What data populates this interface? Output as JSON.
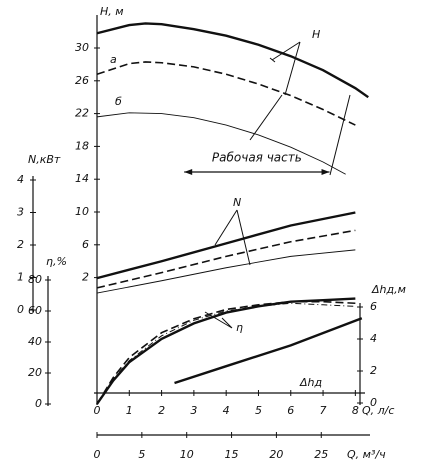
{
  "chart_data": {
    "type": "line",
    "xlabel": "Q, л/с",
    "xlim": [
      0,
      8.5
    ],
    "xticks": [
      0,
      1,
      2,
      3,
      4,
      5,
      6,
      7,
      8
    ],
    "x2label": "Q, м³/ч",
    "x2lim": [
      0,
      30.6
    ],
    "x2ticks": [
      0,
      5,
      10,
      15,
      20,
      25
    ],
    "axes": {
      "h": {
        "label": "H, м",
        "lim": [
          0,
          34
        ],
        "ticks": [
          30,
          26,
          22,
          18,
          14,
          10,
          6,
          2
        ]
      },
      "n": {
        "label": "N,кВт",
        "lim": [
          0,
          4
        ],
        "ticks": [
          4,
          3,
          2,
          1,
          0
        ]
      },
      "eta": {
        "label": "η,%",
        "lim": [
          0,
          80
        ],
        "ticks": [
          80,
          60,
          40,
          20,
          0
        ]
      },
      "dh": {
        "label": "Δhд,м",
        "lim": [
          0,
          6
        ],
        "ticks": [
          6,
          4,
          2,
          0
        ]
      }
    },
    "series": [
      {
        "axis": "h",
        "style": "thick",
        "x": [
          0,
          1,
          1.5,
          2,
          3,
          4,
          5,
          6,
          7,
          8,
          8.4
        ],
        "values": [
          31.8,
          32.8,
          33,
          32.9,
          32.3,
          31.5,
          30.4,
          29,
          27.3,
          25.1,
          24
        ]
      },
      {
        "axis": "h",
        "style": "dashed",
        "x": [
          0,
          1,
          1.5,
          2,
          3,
          4,
          5,
          6,
          7,
          8
        ],
        "values": [
          26.8,
          28.1,
          28.3,
          28.2,
          27.7,
          26.8,
          25.6,
          24.2,
          22.5,
          20.6
        ]
      },
      {
        "axis": "h",
        "style": "thin",
        "x": [
          0,
          1,
          2,
          3,
          4,
          5,
          6,
          7,
          7.7
        ],
        "values": [
          21.6,
          22.1,
          22,
          21.5,
          20.6,
          19.4,
          17.9,
          16.1,
          14.6
        ]
      },
      {
        "axis": "n",
        "style": "thick",
        "x": [
          0,
          2,
          4,
          6,
          8
        ],
        "values": [
          0.98,
          1.5,
          2.05,
          2.6,
          3.0
        ]
      },
      {
        "axis": "n",
        "style": "dashed",
        "x": [
          0,
          2,
          4,
          6,
          8
        ],
        "values": [
          0.68,
          1.15,
          1.65,
          2.1,
          2.45
        ]
      },
      {
        "axis": "n",
        "style": "thin",
        "x": [
          0,
          2,
          4,
          6,
          8
        ],
        "values": [
          0.52,
          0.9,
          1.3,
          1.65,
          1.85
        ]
      },
      {
        "axis": "eta",
        "style": "thick",
        "x": [
          0,
          0.5,
          1,
          2,
          3,
          4,
          5,
          6,
          7,
          8
        ],
        "values": [
          0,
          15,
          27,
          42,
          52,
          59,
          63,
          66,
          67,
          68
        ]
      },
      {
        "axis": "eta",
        "style": "dashed",
        "x": [
          0,
          0.5,
          1,
          2,
          3,
          4,
          5,
          6,
          7,
          8
        ],
        "values": [
          0,
          17,
          30,
          46,
          55,
          61,
          64,
          66,
          66,
          65
        ]
      },
      {
        "axis": "eta",
        "style": "dashdot",
        "x": [
          0,
          0.5,
          1,
          2,
          3,
          4,
          5,
          6,
          7,
          8
        ],
        "values": [
          0,
          16,
          28,
          44,
          54,
          60,
          63,
          65,
          64,
          63
        ]
      },
      {
        "axis": "dh",
        "style": "thick",
        "x": [
          2.4,
          4,
          6,
          8.2
        ],
        "values": [
          1.25,
          2.3,
          3.6,
          5.3
        ]
      }
    ],
    "working_range": {
      "label": "Рабочая часть",
      "from": 2.7,
      "to": 7.2
    },
    "annotations": [
      "H",
      "а",
      "б",
      "N",
      "η",
      "Δhд"
    ]
  }
}
